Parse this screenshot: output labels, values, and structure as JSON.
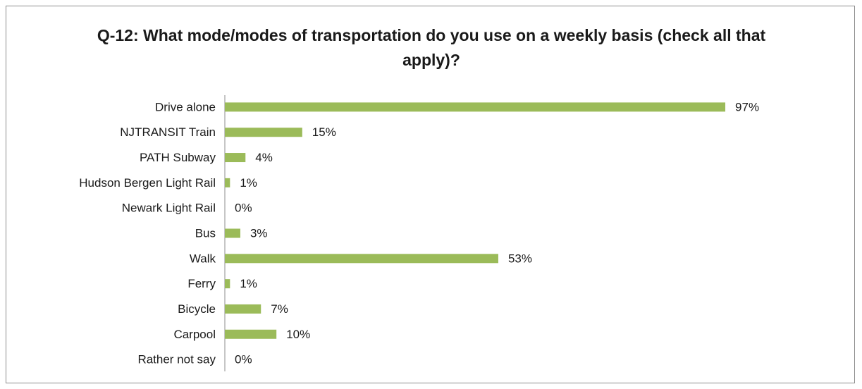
{
  "chart_data": {
    "type": "bar",
    "orientation": "horizontal",
    "title": "Q-12: What mode/modes of transportation do you use on a weekly basis (check all that apply)?",
    "categories": [
      "Drive alone",
      "NJTRANSIT Train",
      "PATH Subway",
      "Hudson Bergen Light Rail",
      "Newark Light Rail",
      "Bus",
      "Walk",
      "Ferry",
      "Bicycle",
      "Carpool",
      "Rather not say"
    ],
    "values": [
      97,
      15,
      4,
      1,
      0,
      3,
      53,
      1,
      7,
      10,
      0
    ],
    "value_labels": [
      "97%",
      "15%",
      "4%",
      "1%",
      "0%",
      "3%",
      "53%",
      "1%",
      "7%",
      "10%",
      "0%"
    ],
    "color": "#9bbb59",
    "xlim": [
      0,
      100
    ]
  }
}
